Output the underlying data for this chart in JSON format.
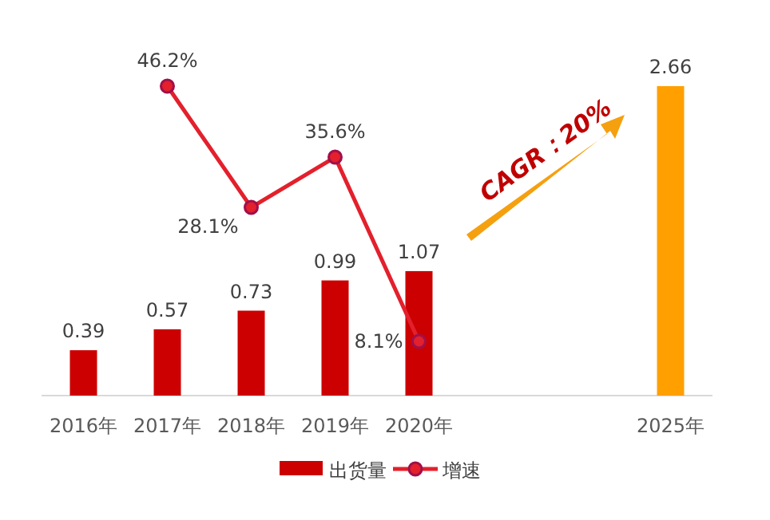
{
  "chart_data": {
    "type": "bar",
    "categories": [
      "2016年",
      "2017年",
      "2018年",
      "2019年",
      "2020年",
      null,
      null,
      "2025年"
    ],
    "legend": "bottom",
    "annotations": [
      "CAGR：20%"
    ],
    "series": [
      {
        "name": "出货量",
        "type": "bar",
        "color": "#cc0000",
        "colors": [
          "#cc0000",
          "#cc0000",
          "#cc0000",
          "#cc0000",
          "#cc0000",
          null,
          null,
          "#ffa000"
        ],
        "data_labels": true,
        "values": [
          0.39,
          0.57,
          0.73,
          0.99,
          1.07,
          null,
          null,
          2.66
        ]
      },
      {
        "name": "增速",
        "type": "line",
        "axis": "y2",
        "color": "#e3202c",
        "marker": "circle",
        "values": [
          null,
          46.2,
          28.1,
          35.6,
          8.1,
          null,
          null,
          null
        ],
        "value_labels": [
          null,
          "46.2%",
          "28.1%",
          "35.6%",
          "8.1%",
          null,
          null,
          null
        ]
      }
    ]
  }
}
